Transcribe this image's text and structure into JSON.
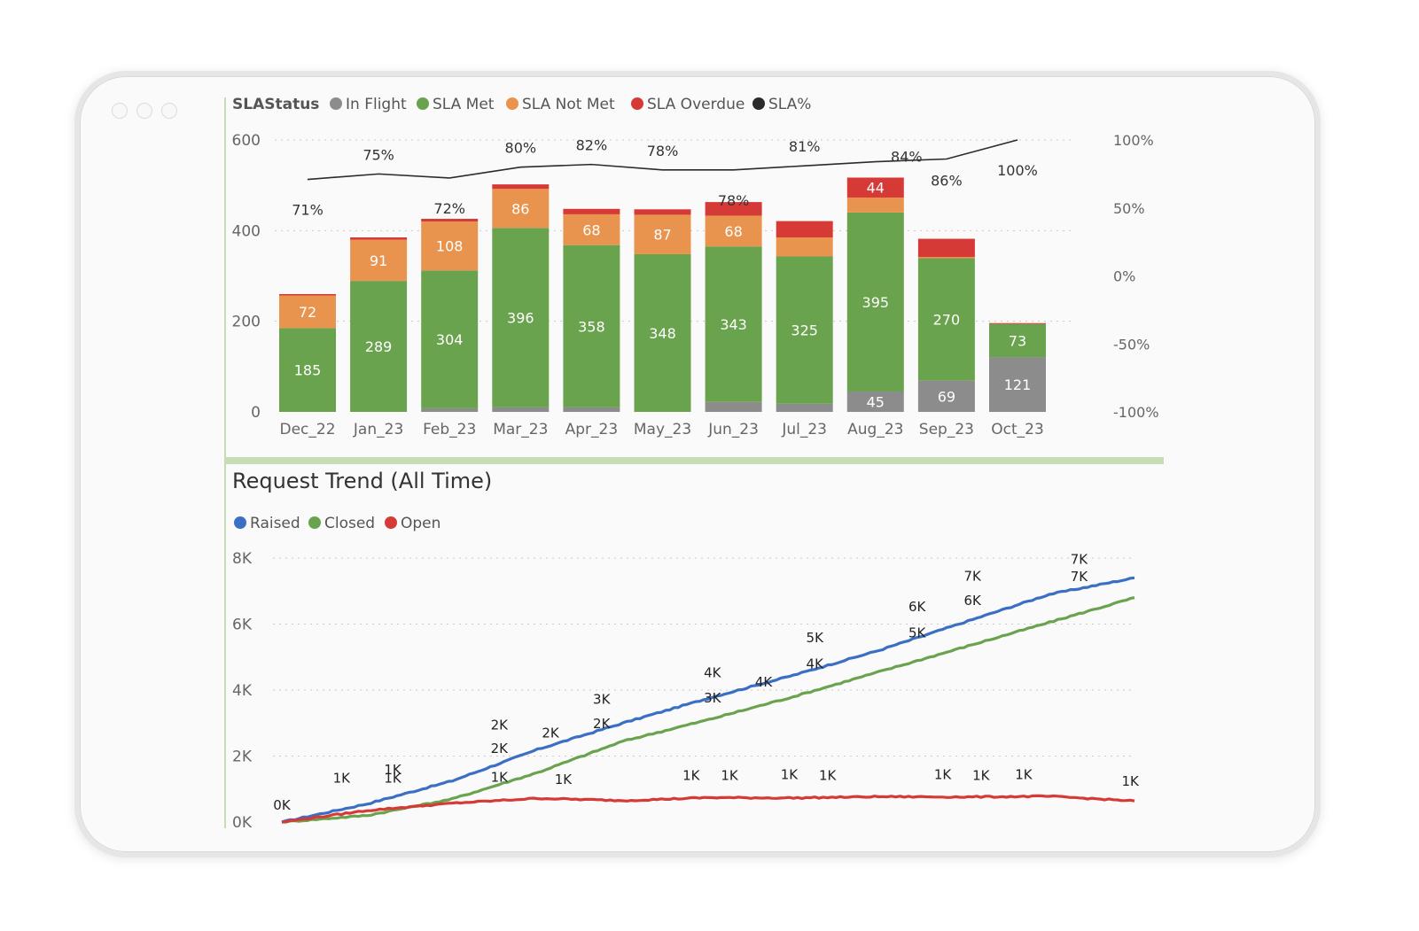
{
  "colors": {
    "in_flight": "#8c8c8c",
    "sla_met": "#6aa34e",
    "sla_not_met": "#e8944e",
    "sla_overdue": "#d63a36",
    "sla_pct": "#2b2b2b",
    "raised": "#3b6fc4",
    "closed": "#6aa34e",
    "open": "#d63a36",
    "divider": "#c6dcb6"
  },
  "icons": [
    "window-dot-icon",
    "legend-dot-icon"
  ],
  "chart_data": [
    {
      "type": "bar",
      "stacked": true,
      "legend_title": "SLAStatus",
      "legend_position": "top-left",
      "categories": [
        "Dec_22",
        "Jan_23",
        "Feb_23",
        "Mar_23",
        "Apr_23",
        "May_23",
        "Jun_23",
        "Jul_23",
        "Aug_23",
        "Sep_23",
        "Oct_23"
      ],
      "series": [
        {
          "name": "In Flight",
          "values": [
            0,
            0,
            8,
            10,
            10,
            0,
            22,
            18,
            45,
            69,
            121
          ],
          "labels": [
            "",
            "",
            "",
            "",
            "",
            "",
            "",
            "",
            "45",
            "69",
            "121"
          ]
        },
        {
          "name": "SLA Met",
          "values": [
            185,
            289,
            304,
            396,
            358,
            348,
            343,
            325,
            395,
            270,
            73
          ],
          "labels": [
            "185",
            "289",
            "304",
            "396",
            "358",
            "348",
            "343",
            "325",
            "395",
            "270",
            "73"
          ]
        },
        {
          "name": "SLA Not Met",
          "values": [
            72,
            91,
            108,
            86,
            68,
            87,
            68,
            42,
            33,
            3,
            0
          ],
          "labels": [
            "72",
            "91",
            "108",
            "86",
            "68",
            "87",
            "68",
            "",
            "",
            "",
            ""
          ]
        },
        {
          "name": "SLA Overdue",
          "values": [
            3,
            5,
            6,
            10,
            12,
            12,
            30,
            36,
            44,
            40,
            2
          ],
          "labels": [
            "",
            "",
            "",
            "",
            "",
            "",
            "",
            "",
            "44",
            "",
            ""
          ]
        }
      ],
      "line_series": {
        "name": "SLA%",
        "values": [
          71,
          75,
          72,
          80,
          82,
          78,
          78,
          81,
          84,
          86,
          100
        ],
        "labels": [
          "71%",
          "75%",
          "72%",
          "80%",
          "82%",
          "78%",
          "78%",
          "81%",
          "84%",
          "86%",
          "100%"
        ]
      },
      "ylim": [
        0,
        600
      ],
      "yticks": [
        0,
        200,
        400,
        600
      ],
      "ytick_labels": [
        "0",
        "200",
        "400",
        "600"
      ],
      "y2lim": [
        -100,
        100
      ],
      "y2ticks": [
        -100,
        -50,
        0,
        50,
        100
      ],
      "y2tick_labels": [
        "-100%",
        "-50%",
        "0%",
        "50%",
        "100%"
      ],
      "grid": true
    },
    {
      "type": "line",
      "title": "Request Trend (All Time)",
      "legend_position": "top-left",
      "x_note": "cumulative points, unlabeled x axis",
      "series": [
        {
          "name": "Raised",
          "x": [
            0,
            2,
            4,
            6,
            8,
            10,
            12,
            14,
            16,
            18,
            20
          ],
          "values": [
            0,
            550,
            1250,
            2200,
            3000,
            3750,
            4450,
            5200,
            6050,
            6900,
            7400
          ]
        },
        {
          "name": "Closed",
          "x": [
            0,
            2,
            4,
            6,
            8,
            10,
            12,
            14,
            16,
            18,
            20
          ],
          "values": [
            0,
            200,
            700,
            1500,
            2450,
            3100,
            3800,
            4550,
            5300,
            6050,
            6800
          ]
        },
        {
          "name": "Open",
          "x": [
            0,
            2,
            4,
            6,
            8,
            10,
            12,
            14,
            16,
            18,
            20
          ],
          "values": [
            0,
            350,
            570,
            720,
            650,
            740,
            730,
            770,
            760,
            780,
            640
          ]
        }
      ],
      "data_labels": [
        {
          "text": "0K",
          "x": 0,
          "y": 380
        },
        {
          "text": "1K",
          "x": 1.4,
          "y": 1200
        },
        {
          "text": "1K",
          "x": 2.6,
          "y": 1450
        },
        {
          "text": "1K",
          "x": 2.6,
          "y": 1200
        },
        {
          "text": "2K",
          "x": 5.1,
          "y": 2800
        },
        {
          "text": "2K",
          "x": 5.1,
          "y": 2100
        },
        {
          "text": "2K",
          "x": 6.3,
          "y": 2560
        },
        {
          "text": "3K",
          "x": 7.5,
          "y": 3590
        },
        {
          "text": "2K",
          "x": 7.5,
          "y": 2840
        },
        {
          "text": "4K",
          "x": 10.1,
          "y": 4390
        },
        {
          "text": "3K",
          "x": 10.1,
          "y": 3630
        },
        {
          "text": "4K",
          "x": 11.3,
          "y": 4110
        },
        {
          "text": "5K",
          "x": 12.5,
          "y": 5450
        },
        {
          "text": "4K",
          "x": 12.5,
          "y": 4660
        },
        {
          "text": "6K",
          "x": 14.9,
          "y": 6390
        },
        {
          "text": "5K",
          "x": 14.9,
          "y": 5600
        },
        {
          "text": "7K",
          "x": 16.2,
          "y": 7320
        },
        {
          "text": "6K",
          "x": 16.2,
          "y": 6580
        },
        {
          "text": "7K",
          "x": 18.7,
          "y": 7830
        },
        {
          "text": "7K",
          "x": 18.7,
          "y": 7300
        },
        {
          "text": "1K",
          "x": 5.1,
          "y": 1220
        },
        {
          "text": "1K",
          "x": 6.6,
          "y": 1160
        },
        {
          "text": "1K",
          "x": 9.6,
          "y": 1280
        },
        {
          "text": "1K",
          "x": 10.5,
          "y": 1280
        },
        {
          "text": "1K",
          "x": 11.9,
          "y": 1300
        },
        {
          "text": "1K",
          "x": 12.8,
          "y": 1280
        },
        {
          "text": "1K",
          "x": 15.5,
          "y": 1300
        },
        {
          "text": "1K",
          "x": 16.4,
          "y": 1280
        },
        {
          "text": "1K",
          "x": 17.4,
          "y": 1300
        },
        {
          "text": "1K",
          "x": 19.9,
          "y": 1100
        }
      ],
      "ylim": [
        0,
        8000
      ],
      "yticks": [
        0,
        2000,
        4000,
        6000,
        8000
      ],
      "ytick_labels": [
        "0K",
        "2K",
        "4K",
        "6K",
        "8K"
      ],
      "grid": true
    }
  ]
}
